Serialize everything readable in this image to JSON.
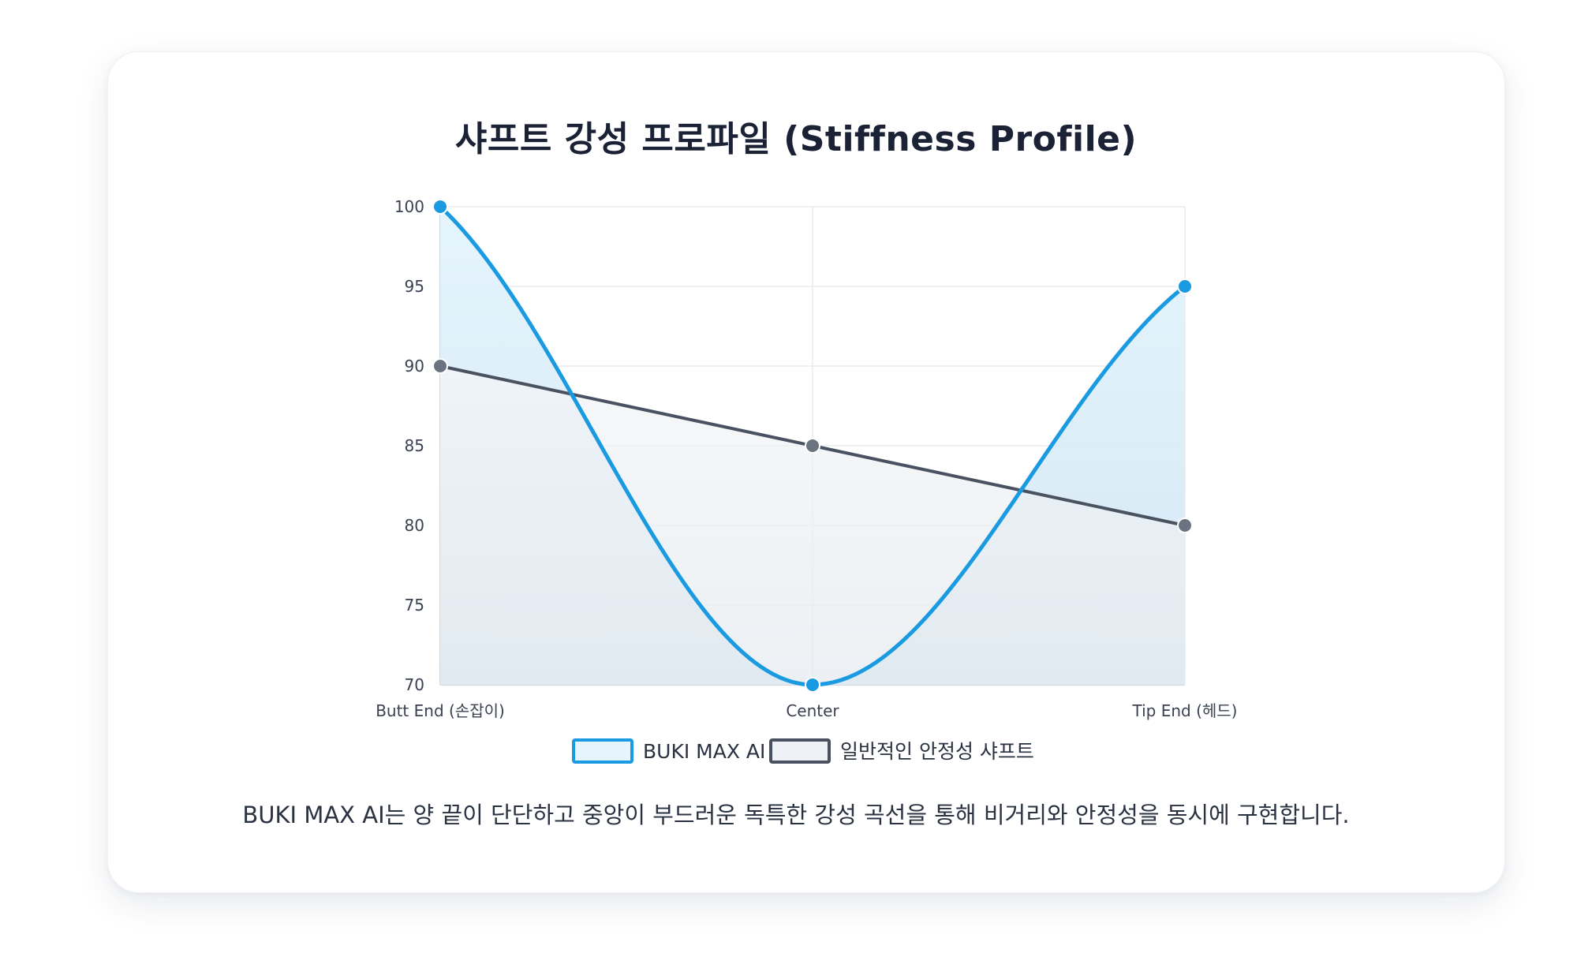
{
  "chart_data": {
    "type": "line",
    "title": "샤프트 강성 프로파일 (Stiffness Profile)",
    "categories": [
      "Butt End (손잡이)",
      "Center",
      "Tip End (헤드)"
    ],
    "ylim": [
      70,
      100
    ],
    "yticks": [
      100,
      95,
      90,
      85,
      80,
      75,
      70
    ],
    "series": [
      {
        "name": "BUKI MAX AI",
        "values": [
          100,
          70,
          95
        ],
        "color": "#1a9ae0",
        "fill": "#d8eefb",
        "smooth": true
      },
      {
        "name": "일반적인 안정성 샤프트",
        "values": [
          90,
          85,
          80
        ],
        "color": "#4a5262",
        "fill": "#dde3ea",
        "smooth": false
      }
    ],
    "grid": true,
    "legend": "bottom"
  },
  "caption": "BUKI MAX AI는 양 끝이 단단하고 중앙이 부드러운 독특한 강성 곡선을 통해 비거리와 안정성을 동시에 구현합니다."
}
